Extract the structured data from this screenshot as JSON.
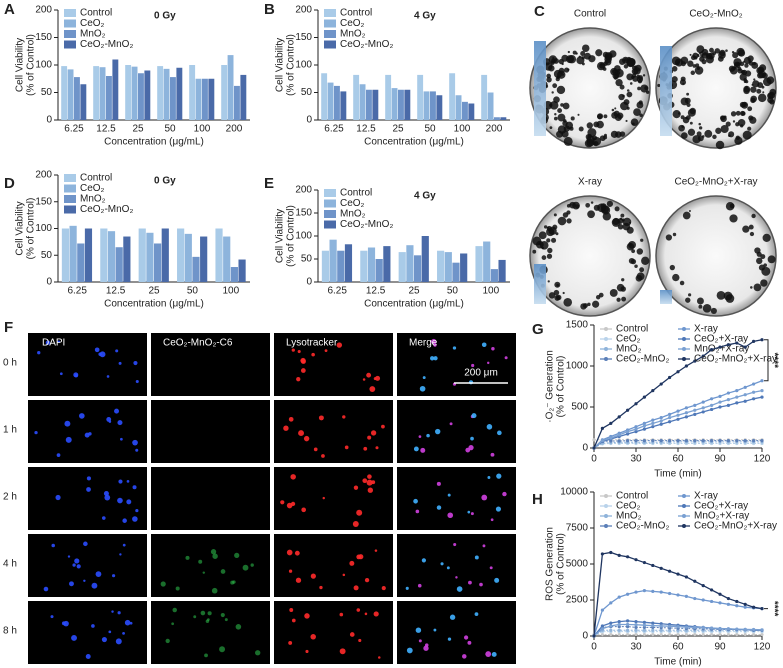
{
  "chart_data": [
    {
      "type": "bar",
      "label": "A",
      "annotation": "0 Gy",
      "xlabel": "Concentration (μg/mL)",
      "ylabel": [
        "Cell Viability",
        "(% of Control)"
      ],
      "categories": [
        "6.25",
        "12.5",
        "25",
        "50",
        "100",
        "200"
      ],
      "ylim": [
        0,
        200
      ],
      "yticks": [
        0,
        50,
        100,
        150,
        200
      ],
      "series": [
        {
          "name": "Control",
          "color": "#a9cbe8",
          "values": [
            98,
            98,
            100,
            98,
            100,
            100
          ]
        },
        {
          "name": "CeO₂",
          "color": "#8db4dc",
          "values": [
            92,
            96,
            97,
            93,
            75,
            118
          ]
        },
        {
          "name": "MnO₂",
          "color": "#6f94c9",
          "values": [
            78,
            80,
            85,
            78,
            75,
            62
          ]
        },
        {
          "name": "CeO₂-MnO₂",
          "color": "#4a6aa8",
          "values": [
            65,
            110,
            90,
            95,
            75,
            82
          ]
        }
      ]
    },
    {
      "type": "bar",
      "label": "B",
      "annotation": "4 Gy",
      "xlabel": "Concentration (μg/mL)",
      "ylabel": [
        "Cell Viability",
        "(% of Control)"
      ],
      "categories": [
        "6.25",
        "12.5",
        "25",
        "50",
        "100",
        "200"
      ],
      "ylim": [
        0,
        200
      ],
      "yticks": [
        0,
        50,
        100,
        150,
        200
      ],
      "series": [
        {
          "name": "Control",
          "color": "#a9cbe8",
          "values": [
            85,
            82,
            82,
            82,
            85,
            82
          ]
        },
        {
          "name": "CeO₂",
          "color": "#8db4dc",
          "values": [
            68,
            65,
            58,
            52,
            45,
            50
          ]
        },
        {
          "name": "MnO₂",
          "color": "#6f94c9",
          "values": [
            62,
            55,
            55,
            52,
            33,
            5
          ]
        },
        {
          "name": "CeO₂-MnO₂",
          "color": "#4a6aa8",
          "values": [
            52,
            55,
            55,
            45,
            30,
            5
          ]
        }
      ]
    },
    {
      "type": "bar",
      "label": "D",
      "annotation": "0 Gy",
      "xlabel": "Concentration (μg/mL)",
      "ylabel": [
        "Cell Viability",
        "(% of Control)"
      ],
      "categories": [
        "6.25",
        "12.5",
        "25",
        "50",
        "100"
      ],
      "ylim": [
        0,
        200
      ],
      "yticks": [
        0,
        50,
        100,
        150,
        200
      ],
      "series": [
        {
          "name": "Control",
          "color": "#a9cbe8",
          "values": [
            100,
            100,
            100,
            100,
            100
          ]
        },
        {
          "name": "CeO₂",
          "color": "#8db4dc",
          "values": [
            105,
            95,
            92,
            90,
            85
          ]
        },
        {
          "name": "MnO₂",
          "color": "#6f94c9",
          "values": [
            72,
            65,
            72,
            47,
            28
          ]
        },
        {
          "name": "CeO₂-MnO₂",
          "color": "#4a6aa8",
          "values": [
            100,
            85,
            100,
            85,
            42
          ]
        }
      ]
    },
    {
      "type": "bar",
      "label": "E",
      "annotation": "4 Gy",
      "xlabel": "Concentration (μg/mL)",
      "ylabel": [
        "Cell Viability",
        "(% of Control)"
      ],
      "categories": [
        "6.25",
        "12.5",
        "25",
        "50",
        "100"
      ],
      "ylim": [
        0,
        200
      ],
      "yticks": [
        0,
        50,
        100,
        150,
        200
      ],
      "series": [
        {
          "name": "Control",
          "color": "#a9cbe8",
          "values": [
            68,
            68,
            65,
            68,
            78
          ]
        },
        {
          "name": "CeO₂",
          "color": "#8db4dc",
          "values": [
            92,
            75,
            80,
            65,
            88
          ]
        },
        {
          "name": "MnO₂",
          "color": "#6f94c9",
          "values": [
            68,
            50,
            58,
            42,
            28
          ]
        },
        {
          "name": "CeO₂-MnO₂",
          "color": "#4a6aa8",
          "values": [
            82,
            78,
            100,
            62,
            48
          ]
        }
      ]
    },
    {
      "type": "line",
      "label": "G",
      "annotation": "****",
      "xlabel": "Time (min)",
      "ylabel": [
        "·O₂⁻ Generation",
        "(% of Control)"
      ],
      "x": [
        0,
        6,
        12,
        18,
        24,
        30,
        36,
        42,
        48,
        54,
        60,
        66,
        72,
        78,
        84,
        90,
        96,
        102,
        108,
        114,
        120
      ],
      "xlim": [
        0,
        120
      ],
      "xticks": [
        0,
        30,
        60,
        90,
        120
      ],
      "ylim": [
        0,
        1500
      ],
      "yticks": [
        0,
        500,
        1000,
        1500
      ],
      "series": [
        {
          "name": "Control",
          "color": "#c8c8c8",
          "values": [
            100,
            100,
            100,
            100,
            100,
            100,
            100,
            100,
            100,
            100,
            100,
            100,
            100,
            100,
            100,
            100,
            100,
            100,
            100,
            100,
            100
          ]
        },
        {
          "name": "CeO₂",
          "color": "#b9d3ea",
          "values": [
            0,
            50,
            55,
            55,
            55,
            55,
            55,
            55,
            55,
            55,
            55,
            55,
            55,
            55,
            55,
            55,
            55,
            55,
            55,
            55,
            55
          ]
        },
        {
          "name": "MnO₂",
          "color": "#8fb3da",
          "values": [
            0,
            60,
            65,
            70,
            70,
            70,
            70,
            70,
            70,
            75,
            75,
            75,
            75,
            75,
            75,
            75,
            75,
            75,
            75,
            75,
            75
          ]
        },
        {
          "name": "CeO₂-MnO₂",
          "color": "#5b7fb8",
          "values": [
            0,
            80,
            85,
            85,
            90,
            90,
            90,
            90,
            90,
            90,
            90,
            90,
            90,
            90,
            90,
            90,
            90,
            90,
            90,
            90,
            90
          ]
        },
        {
          "name": "X-ray",
          "color": "#6f97cf",
          "values": [
            0,
            100,
            140,
            180,
            220,
            260,
            300,
            340,
            370,
            410,
            450,
            490,
            520,
            560,
            600,
            630,
            670,
            700,
            740,
            780,
            820
          ]
        },
        {
          "name": "CeO₂+X-ray",
          "color": "#4f78b8",
          "values": [
            0,
            80,
            110,
            140,
            170,
            200,
            230,
            260,
            290,
            320,
            350,
            380,
            410,
            440,
            470,
            500,
            520,
            550,
            570,
            600,
            620
          ]
        },
        {
          "name": "MnO₂+X-ray",
          "color": "#7aa0d2",
          "values": [
            0,
            90,
            120,
            160,
            200,
            230,
            270,
            300,
            330,
            370,
            400,
            430,
            460,
            490,
            520,
            560,
            590,
            620,
            650,
            680,
            700
          ]
        },
        {
          "name": "CeO₂-MnO₂+X-ray",
          "color": "#1f3560",
          "values": [
            0,
            240,
            300,
            380,
            460,
            540,
            620,
            700,
            780,
            860,
            930,
            1000,
            1060,
            1120,
            1200,
            1230,
            1260,
            1280,
            1230,
            1300,
            1320
          ]
        }
      ]
    },
    {
      "type": "line",
      "label": "H",
      "annotation": "****",
      "xlabel": "Time (min)",
      "ylabel": [
        "ROS Generation",
        "(% of Control)"
      ],
      "x": [
        0,
        6,
        12,
        18,
        24,
        30,
        36,
        42,
        48,
        54,
        60,
        66,
        72,
        78,
        84,
        90,
        96,
        102,
        108,
        114,
        120
      ],
      "xlim": [
        0,
        120
      ],
      "xticks": [
        0,
        30,
        60,
        90,
        120
      ],
      "ylim": [
        0,
        10000
      ],
      "yticks": [
        0,
        2500,
        5000,
        7500,
        10000
      ],
      "series": [
        {
          "name": "Control",
          "color": "#c8c8c8",
          "values": [
            100,
            100,
            100,
            100,
            100,
            100,
            100,
            100,
            100,
            100,
            100,
            100,
            100,
            100,
            100,
            100,
            100,
            100,
            100,
            100,
            100
          ]
        },
        {
          "name": "CeO₂",
          "color": "#b9d3ea",
          "values": [
            0,
            300,
            300,
            300,
            300,
            300,
            300,
            300,
            300,
            300,
            300,
            300,
            300,
            300,
            300,
            300,
            300,
            300,
            300,
            300,
            300
          ]
        },
        {
          "name": "MnO₂",
          "color": "#8fb3da",
          "values": [
            0,
            400,
            400,
            400,
            400,
            400,
            400,
            400,
            400,
            400,
            400,
            400,
            400,
            400,
            400,
            400,
            400,
            400,
            400,
            400,
            400
          ]
        },
        {
          "name": "CeO₂-MnO₂",
          "color": "#5b7fb8",
          "values": [
            0,
            600,
            650,
            650,
            650,
            600,
            600,
            600,
            580,
            560,
            540,
            520,
            500,
            500,
            480,
            460,
            450,
            450,
            440,
            430,
            420
          ]
        },
        {
          "name": "X-ray",
          "color": "#6f97cf",
          "values": [
            0,
            1800,
            2300,
            2700,
            2900,
            3050,
            3150,
            3100,
            3050,
            2950,
            2850,
            2750,
            2600,
            2500,
            2400,
            2300,
            2200,
            2100,
            2000,
            1950,
            1900
          ]
        },
        {
          "name": "CeO₂+X-ray",
          "color": "#4f78b8",
          "values": [
            0,
            700,
            900,
            1000,
            1050,
            1000,
            950,
            900,
            850,
            800,
            750,
            700,
            650,
            600,
            550,
            500,
            500,
            450,
            450,
            400,
            400
          ]
        },
        {
          "name": "MnO₂+X-ray",
          "color": "#7aa0d2",
          "values": [
            0,
            500,
            700,
            800,
            800,
            780,
            750,
            720,
            700,
            680,
            650,
            620,
            600,
            580,
            550,
            520,
            500,
            480,
            460,
            450,
            430
          ]
        },
        {
          "name": "CeO₂-MnO₂+X-ray",
          "color": "#1f3560",
          "values": [
            0,
            5700,
            5800,
            5600,
            5500,
            5300,
            5100,
            4900,
            4700,
            4500,
            4300,
            4100,
            3800,
            3500,
            3200,
            2900,
            2600,
            2400,
            2200,
            2000,
            1900
          ]
        }
      ]
    }
  ],
  "panel_c": {
    "label": "C",
    "images": [
      "Control",
      "CeO₂-MnO₂",
      "X-ray",
      "CeO₂-MnO₂+X-ray"
    ]
  },
  "panel_f": {
    "label": "F",
    "columns": [
      "DAPI",
      "CeO₂-MnO₂-C6",
      "Lysotracker",
      "Merge"
    ],
    "rows": [
      "0 h",
      "1 h",
      "2 h",
      "4 h",
      "8 h"
    ],
    "scale_bar": "200 μm"
  }
}
